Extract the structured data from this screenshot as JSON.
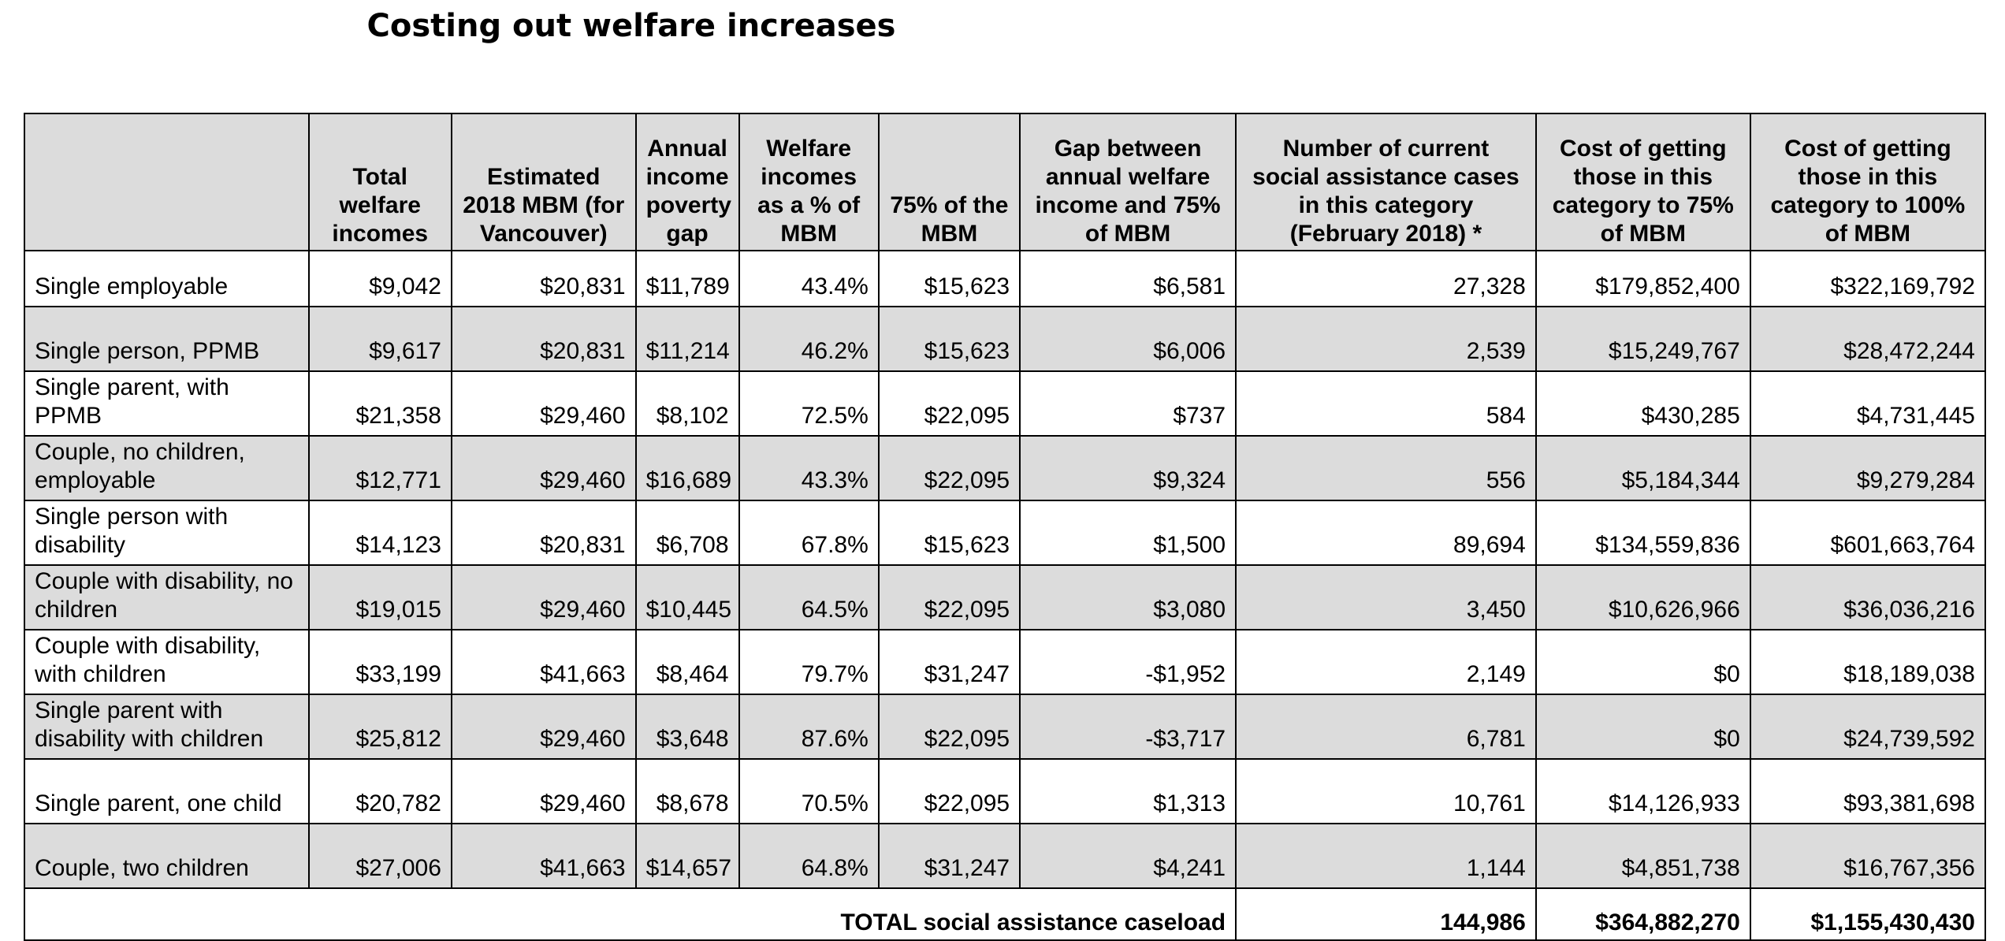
{
  "title": "Costing out welfare increases",
  "columns": [
    "",
    "Total welfare incomes",
    "Estimated 2018 MBM (for Vancouver)",
    "Annual income poverty gap",
    "Welfare incomes as a % of MBM",
    "75% of the MBM",
    "Gap between annual welfare income and 75% of MBM",
    "Number of current social assistance cases in this category (February 2018) *",
    "Cost of getting those in this category to 75% of MBM",
    "Cost of getting those in this category to 100% of MBM"
  ],
  "rows": [
    [
      "Single employable",
      "$9,042",
      "$20,831",
      "$11,789",
      "43.4%",
      "$15,623",
      "$6,581",
      "27,328",
      "$179,852,400",
      "$322,169,792"
    ],
    [
      "Single person, PPMB",
      "$9,617",
      "$20,831",
      "$11,214",
      "46.2%",
      "$15,623",
      "$6,006",
      "2,539",
      "$15,249,767",
      "$28,472,244"
    ],
    [
      "Single parent, with PPMB",
      "$21,358",
      "$29,460",
      "$8,102",
      "72.5%",
      "$22,095",
      "$737",
      "584",
      "$430,285",
      "$4,731,445"
    ],
    [
      "Couple, no children, employable",
      "$12,771",
      "$29,460",
      "$16,689",
      "43.3%",
      "$22,095",
      "$9,324",
      "556",
      "$5,184,344",
      "$9,279,284"
    ],
    [
      "Single person with disability",
      "$14,123",
      "$20,831",
      "$6,708",
      "67.8%",
      "$15,623",
      "$1,500",
      "89,694",
      "$134,559,836",
      "$601,663,764"
    ],
    [
      "Couple with disability, no children",
      "$19,015",
      "$29,460",
      "$10,445",
      "64.5%",
      "$22,095",
      "$3,080",
      "3,450",
      "$10,626,966",
      "$36,036,216"
    ],
    [
      "Couple with disability, with children",
      "$33,199",
      "$41,663",
      "$8,464",
      "79.7%",
      "$31,247",
      "-$1,952",
      "2,149",
      "$0",
      "$18,189,038"
    ],
    [
      "Single parent with disability with children",
      "$25,812",
      "$29,460",
      "$3,648",
      "87.6%",
      "$22,095",
      "-$3,717",
      "6,781",
      "$0",
      "$24,739,592"
    ],
    [
      "Single parent, one child",
      "$20,782",
      "$29,460",
      "$8,678",
      "70.5%",
      "$22,095",
      "$1,313",
      "10,761",
      "$14,126,933",
      "$93,381,698"
    ],
    [
      "Couple, two children",
      "$27,006",
      "$41,663",
      "$14,657",
      "64.8%",
      "$31,247",
      "$4,241",
      "1,144",
      "$4,851,738",
      "$16,767,356"
    ]
  ],
  "total": {
    "label": "TOTAL social assistance caseload",
    "cases": "144,986",
    "cost_75": "$364,882,270",
    "cost_100": "$1,155,430,430"
  }
}
